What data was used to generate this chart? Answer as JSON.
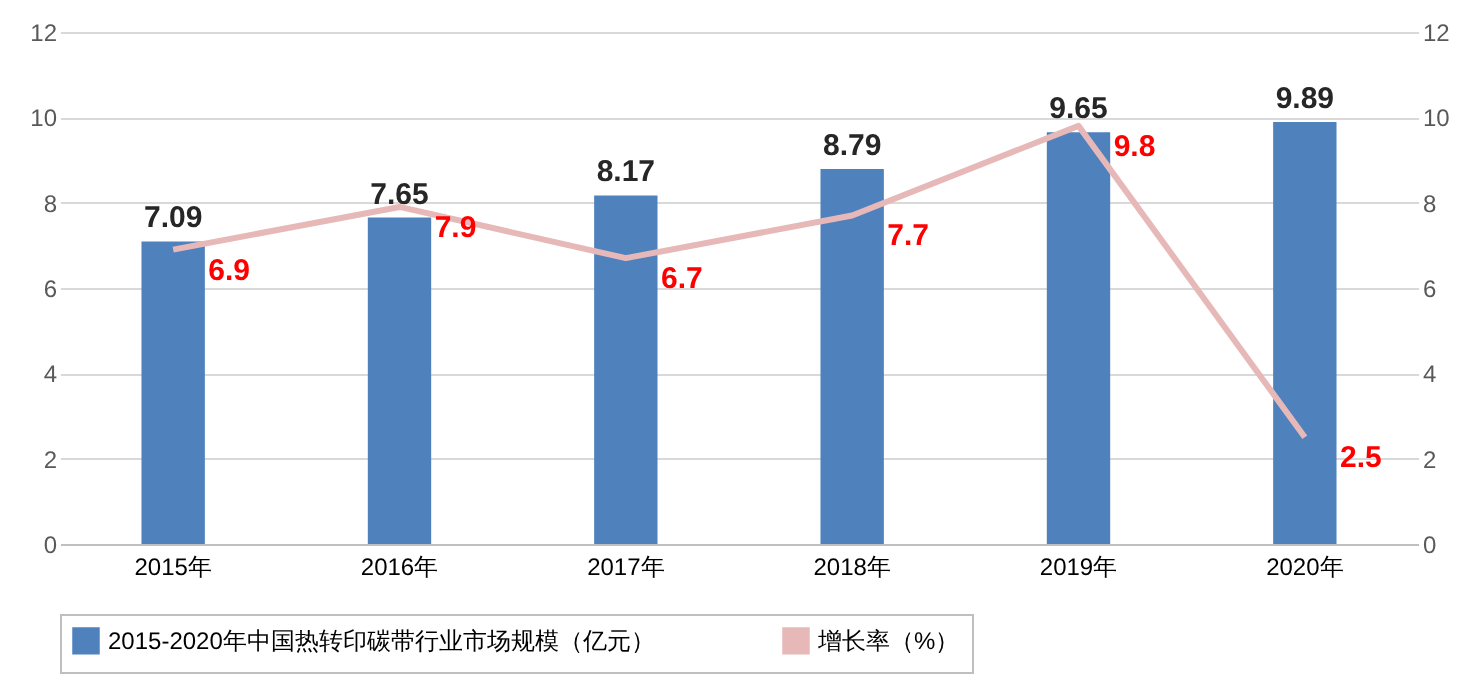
{
  "chart_data": {
    "type": "bar",
    "categories": [
      "2015年",
      "2016年",
      "2017年",
      "2018年",
      "2019年",
      "2020年"
    ],
    "series": [
      {
        "name": "2015-2020年中国热转印碳带行业市场规模（亿元）",
        "color": "#4f81bd",
        "values": [
          7.09,
          7.65,
          8.17,
          8.79,
          9.65,
          9.89
        ]
      },
      {
        "name": "增长率（%）",
        "type": "line",
        "axis": "y2",
        "color": "#e6b9b8",
        "values": [
          6.9,
          7.9,
          6.7,
          7.7,
          9.8,
          2.5
        ]
      }
    ],
    "ylim": [
      0,
      12
    ],
    "yticks": [
      0,
      2,
      4,
      6,
      8,
      10,
      12
    ],
    "y2lim": [
      0,
      12
    ],
    "y2ticks": [
      0,
      2,
      4,
      6,
      8,
      10,
      12
    ],
    "grid": "y",
    "legend": "bottom",
    "data_labels": true
  }
}
